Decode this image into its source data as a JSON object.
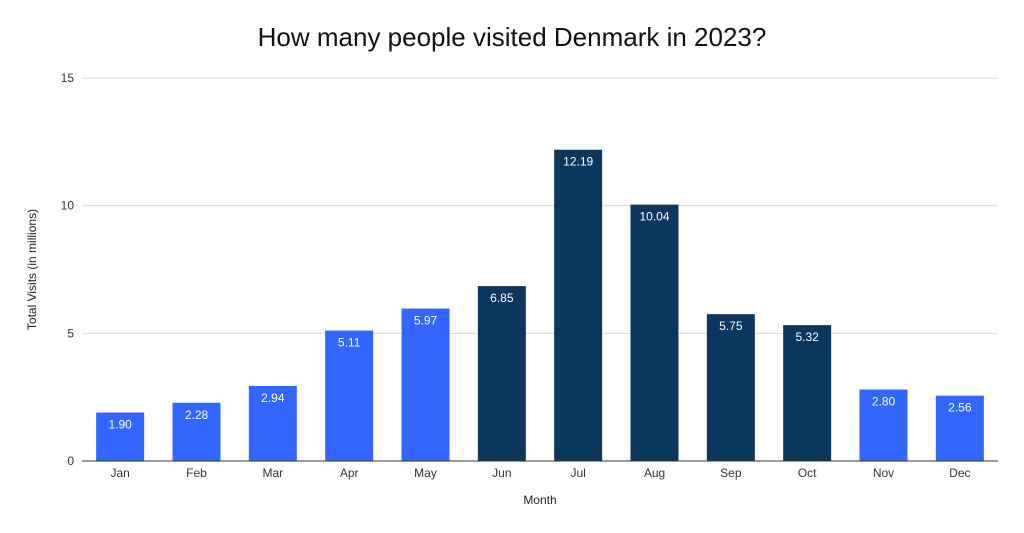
{
  "chart_data": {
    "type": "bar",
    "title": "How many people visited Denmark in 2023?",
    "xlabel": "Month",
    "ylabel": "Total Visits (in millions)",
    "categories": [
      "Jan",
      "Feb",
      "Mar",
      "Apr",
      "May",
      "Jun",
      "Jul",
      "Aug",
      "Sep",
      "Oct",
      "Nov",
      "Dec"
    ],
    "values": [
      1.9,
      2.28,
      2.94,
      5.11,
      5.97,
      6.85,
      12.19,
      10.04,
      5.75,
      5.32,
      2.8,
      2.56
    ],
    "value_labels": [
      "1.90",
      "2.28",
      "2.94",
      "5.11",
      "5.97",
      "6.85",
      "12.19",
      "10.04",
      "5.75",
      "5.32",
      "2.80",
      "2.56"
    ],
    "ylim": [
      0,
      15
    ],
    "yticks": [
      0,
      5,
      10,
      15
    ],
    "grid": true,
    "legend": "none",
    "colors": {
      "light": "#3366FF",
      "dark": "#0B365E",
      "grid": "#d9d9d9",
      "axis": "#333333"
    },
    "bar_color_keys": [
      "light",
      "light",
      "light",
      "light",
      "light",
      "dark",
      "dark",
      "dark",
      "dark",
      "dark",
      "light",
      "light"
    ]
  }
}
